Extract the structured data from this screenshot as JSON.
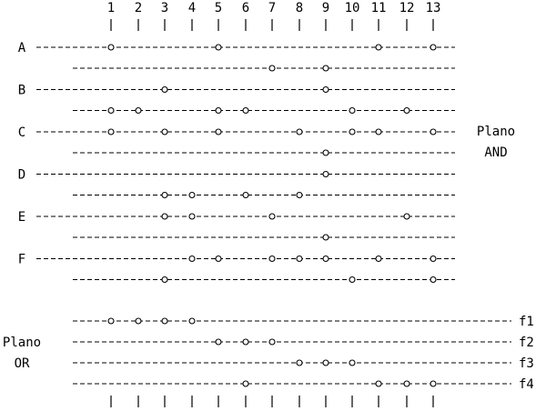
{
  "columns": [
    "1",
    "2",
    "3",
    "4",
    "5",
    "6",
    "7",
    "8",
    "9",
    "10",
    "11",
    "12",
    "13"
  ],
  "and_plane": {
    "label_line1": "Plano",
    "label_line2": "AND",
    "rows": [
      {
        "label": "A",
        "true_nodes": [
          1,
          5,
          11,
          13
        ],
        "complement_nodes": [
          7,
          9
        ]
      },
      {
        "label": "B",
        "true_nodes": [
          3,
          9
        ],
        "complement_nodes": [
          1,
          2,
          5,
          6,
          10,
          12
        ]
      },
      {
        "label": "C",
        "true_nodes": [
          1,
          3,
          5,
          8,
          10,
          11,
          13
        ],
        "complement_nodes": [
          9
        ]
      },
      {
        "label": "D",
        "true_nodes": [
          9
        ],
        "complement_nodes": [
          3,
          4,
          6,
          8
        ]
      },
      {
        "label": "E",
        "true_nodes": [
          3,
          4,
          7,
          12
        ],
        "complement_nodes": [
          9
        ]
      },
      {
        "label": "F",
        "true_nodes": [
          4,
          5,
          7,
          8,
          9,
          11,
          13
        ],
        "complement_nodes": [
          3,
          10,
          13
        ]
      }
    ]
  },
  "or_plane": {
    "label_line1": "Plano",
    "label_line2": "OR",
    "outputs": [
      {
        "label": "f1",
        "nodes": [
          1,
          2,
          3,
          4
        ]
      },
      {
        "label": "f2",
        "nodes": [
          5,
          6,
          7
        ]
      },
      {
        "label": "f3",
        "nodes": [
          8,
          9,
          10
        ]
      },
      {
        "label": "f4",
        "nodes": [
          6,
          11,
          12,
          13
        ]
      }
    ]
  }
}
